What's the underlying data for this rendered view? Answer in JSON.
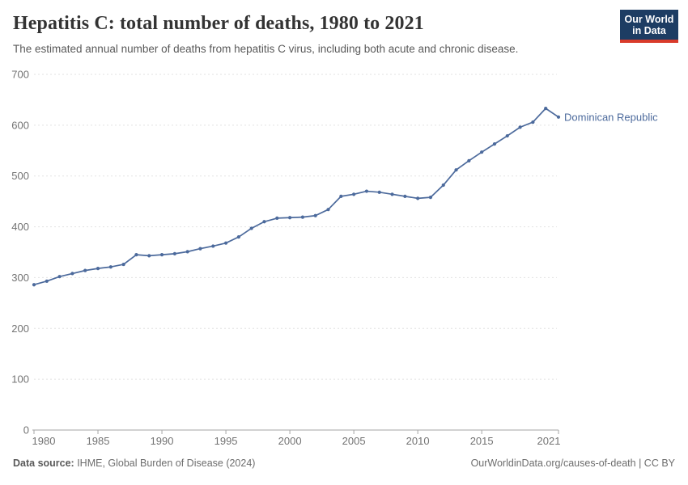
{
  "header": {
    "title": "Hepatitis C: total number of deaths, 1980 to 2021",
    "subtitle": "The estimated annual number of deaths from hepatitis C virus, including both acute and chronic disease.",
    "logo": {
      "line1": "Our World",
      "line2": "in Data"
    }
  },
  "chart_data": {
    "type": "line",
    "title": "Hepatitis C: total number of deaths, 1980 to 2021",
    "xlabel": "",
    "ylabel": "",
    "ylim": [
      0,
      700
    ],
    "yticks": [
      0,
      100,
      200,
      300,
      400,
      500,
      600,
      700
    ],
    "xticks": [
      1980,
      1985,
      1990,
      1995,
      2000,
      2005,
      2010,
      2015,
      2021
    ],
    "grid": "horizontal-dashed",
    "legend_position": "end-of-line-label",
    "x": [
      1980,
      1981,
      1982,
      1983,
      1984,
      1985,
      1986,
      1987,
      1988,
      1989,
      1990,
      1991,
      1992,
      1993,
      1994,
      1995,
      1996,
      1997,
      1998,
      1999,
      2000,
      2001,
      2002,
      2003,
      2004,
      2005,
      2006,
      2007,
      2008,
      2009,
      2010,
      2011,
      2012,
      2013,
      2014,
      2015,
      2016,
      2017,
      2018,
      2019,
      2020,
      2021
    ],
    "series": [
      {
        "name": "Dominican Republic",
        "color": "#4c6a9c",
        "values": [
          286,
          293,
          302,
          308,
          314,
          318,
          321,
          326,
          345,
          343,
          345,
          347,
          351,
          357,
          362,
          368,
          380,
          397,
          410,
          417,
          418,
          419,
          422,
          434,
          460,
          464,
          470,
          468,
          464,
          460,
          456,
          458,
          482,
          512,
          530,
          547,
          563,
          579,
          596,
          606,
          633,
          616
        ]
      }
    ]
  },
  "footer": {
    "datasource_label": "Data source:",
    "datasource_text": " IHME, Global Burden of Disease (2024)",
    "link": "OurWorldinData.org/causes-of-death | CC BY"
  },
  "colors": {
    "line": "#4c6a9c",
    "grid": "#e2e2e2",
    "axis": "#a5a5a5",
    "tick_label": "#737373",
    "logo_bg": "#1d3d63",
    "logo_bar": "#d93b2b"
  }
}
